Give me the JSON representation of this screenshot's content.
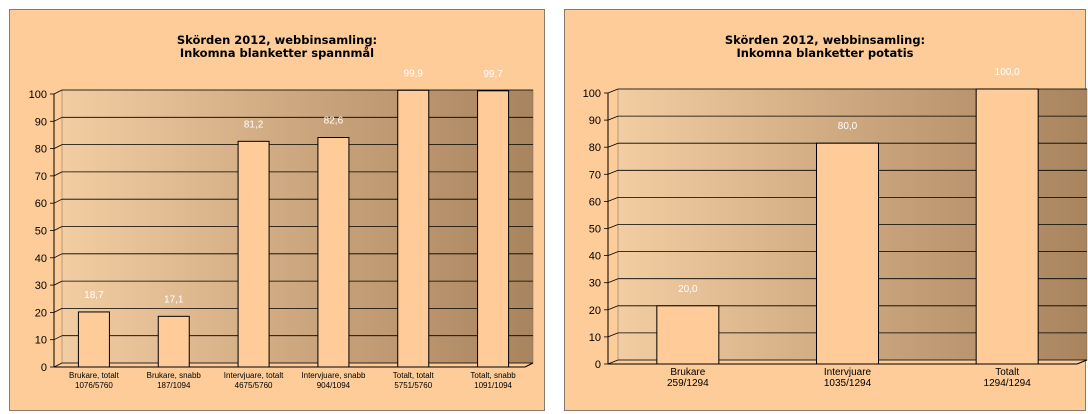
{
  "chart_data": [
    {
      "type": "bar",
      "title_lines": [
        "Skörden 2012, webbinsamling:",
        "Inkomna blanketter spannmål"
      ],
      "categories": [
        [
          "Brukare, totalt",
          "1076/5760"
        ],
        [
          "Brukare, snabb",
          "187/1094"
        ],
        [
          "Intervjuare, totalt",
          "4675/5760"
        ],
        [
          "Intervjuare, snabb",
          "904/1094"
        ],
        [
          "Totalt, totalt",
          "5751/5760"
        ],
        [
          "Totalt, snabb",
          "1091/1094"
        ]
      ],
      "values": [
        18.7,
        17.1,
        81.2,
        82.6,
        99.9,
        99.7
      ],
      "data_labels": [
        "18,7",
        "17,1",
        "81,2",
        "82,6",
        "99,9",
        "99,7"
      ],
      "ylim": [
        0,
        100
      ],
      "yticks": [
        "0",
        "10",
        "20",
        "30",
        "40",
        "50",
        "60",
        "70",
        "80",
        "90",
        "100"
      ],
      "grid": true,
      "legend": "none",
      "colors": {
        "bar": "#ffcc99",
        "plot_bg": "#b38c66",
        "panel_bg": "#fdcc99"
      }
    },
    {
      "type": "bar",
      "title_lines": [
        "Skörden 2012, webbinsamling:",
        "Inkomna blanketter potatis"
      ],
      "categories": [
        [
          "Brukare",
          "259/1294"
        ],
        [
          "Intervjuare",
          "1035/1294"
        ],
        [
          "Totalt",
          "1294/1294"
        ]
      ],
      "values": [
        20.0,
        80.0,
        100.0
      ],
      "data_labels": [
        "20,0",
        "80,0",
        "100,0"
      ],
      "ylim": [
        0,
        100
      ],
      "yticks": [
        "0",
        "10",
        "20",
        "30",
        "40",
        "50",
        "60",
        "70",
        "80",
        "90",
        "100"
      ],
      "grid": true,
      "legend": "none",
      "colors": {
        "bar": "#ffcc99",
        "plot_bg": "#b38c66",
        "panel_bg": "#fdcc99"
      }
    }
  ]
}
